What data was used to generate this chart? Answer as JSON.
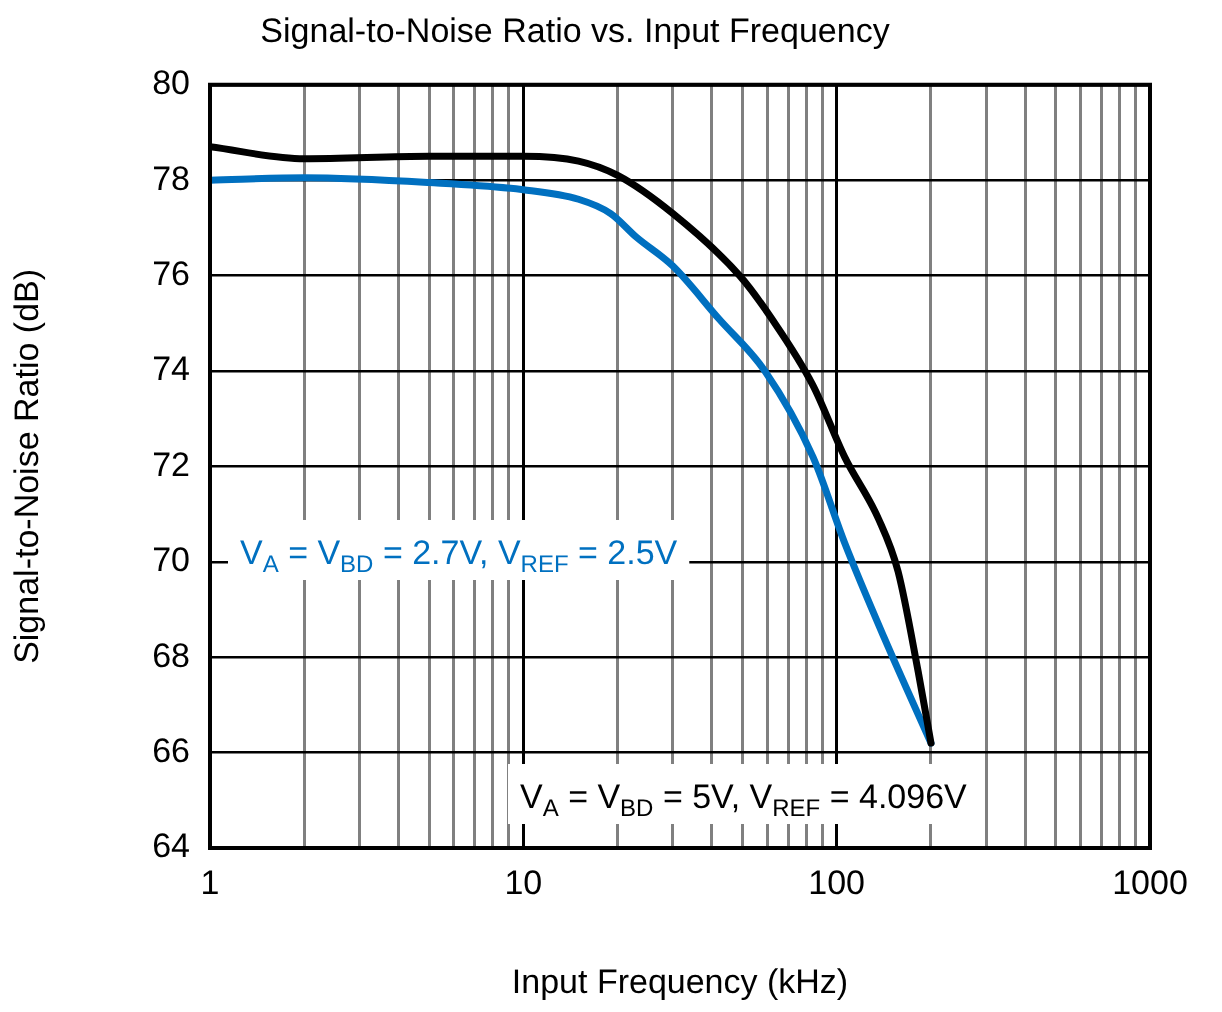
{
  "chart_data": {
    "type": "line",
    "title": "Signal-to-Noise Ratio vs. Input Frequency",
    "xlabel": "Input Frequency (kHz)",
    "ylabel": "Signal-to-Noise Ratio (dB)",
    "log": "x",
    "grid": true,
    "legend": false,
    "marker": "none",
    "line_style": "solid",
    "xlim": [
      1,
      1000
    ],
    "ylim": [
      64,
      80
    ],
    "xticks": [
      1,
      {
        "value": 2,
        "label": null
      },
      {
        "value": 3,
        "label": null
      },
      {
        "value": 4,
        "label": null
      },
      {
        "value": 5,
        "label": null
      },
      {
        "value": 6,
        "label": null
      },
      {
        "value": 7,
        "label": null
      },
      {
        "value": 8,
        "label": null
      },
      {
        "value": 9,
        "label": null
      },
      10,
      {
        "value": 20,
        "label": null
      },
      {
        "value": 30,
        "label": null
      },
      {
        "value": 40,
        "label": null
      },
      {
        "value": 50,
        "label": null
      },
      {
        "value": 60,
        "label": null
      },
      {
        "value": 70,
        "label": null
      },
      {
        "value": 80,
        "label": null
      },
      {
        "value": 90,
        "label": null
      },
      100,
      {
        "value": 200,
        "label": null
      },
      {
        "value": 300,
        "label": null
      },
      {
        "value": 400,
        "label": null
      },
      {
        "value": 500,
        "label": null
      },
      {
        "value": 600,
        "label": null
      },
      {
        "value": 700,
        "label": null
      },
      {
        "value": 800,
        "label": null
      },
      {
        "value": 900,
        "label": null
      },
      1000
    ],
    "yticks": [
      64,
      66,
      68,
      70,
      72,
      74,
      76,
      78,
      80
    ],
    "series": [
      {
        "name": "V$_{A}$ = V$_{BD}$ = 5V, V$_{REF}$ = 4.096V",
        "color": "#000000",
        "x": [
          1,
          2,
          5,
          10,
          15,
          20,
          30,
          49,
          62,
          84,
          106,
          136,
          157,
          182,
          200
        ],
        "values": [
          78.7,
          78.45,
          78.5,
          78.5,
          78.4,
          78.1,
          77.3,
          76.0,
          75.1,
          73.7,
          72.2,
          70.9,
          69.8,
          67.7,
          66.2
        ]
      },
      {
        "name": "V$_{A}$ = V$_{BD}$ = 2.7V, V$_{REF}$ = 2.5V",
        "color": "#0070c0",
        "x": [
          1,
          2,
          5,
          10,
          15,
          19,
          23,
          30,
          42,
          59,
          84,
          106,
          142,
          200
        ],
        "values": [
          78.0,
          78.05,
          77.95,
          77.8,
          77.6,
          77.3,
          76.8,
          76.2,
          75.1,
          74.0,
          72.2,
          70.4,
          68.4,
          66.2
        ]
      }
    ]
  }
}
